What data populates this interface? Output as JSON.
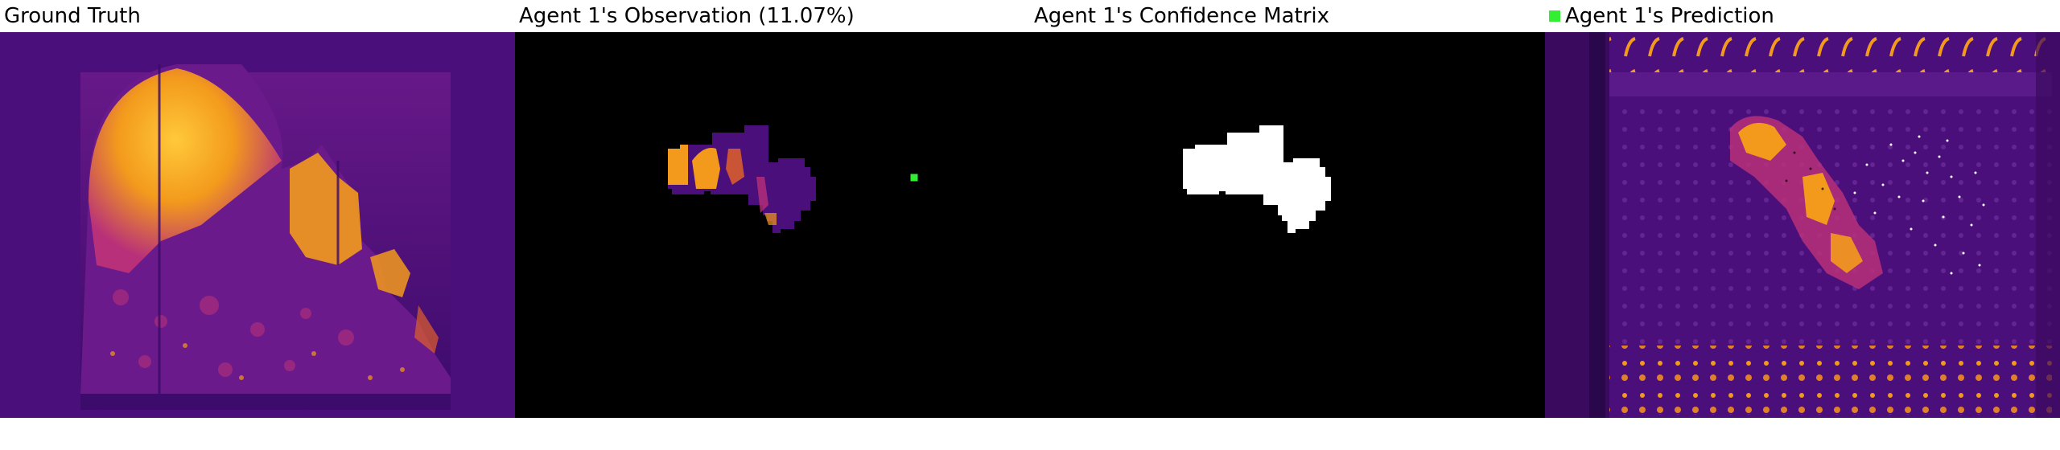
{
  "figure": {
    "panels": [
      {
        "id": "ground-truth",
        "title": "Ground Truth"
      },
      {
        "id": "observation",
        "title": "Agent 1's Observation (11.07%)"
      },
      {
        "id": "confidence",
        "title": "Agent 1's Confidence Matrix"
      },
      {
        "id": "prediction",
        "title": "Agent 1's Prediction",
        "legend_marker_color": "#33ee33"
      }
    ],
    "colors": {
      "background_purple": "#4a0f7a",
      "hot_orange": "#f39a1c",
      "hot_yellow": "#ffc93a",
      "mid_magenta": "#b8307a",
      "mask_black": "#000000",
      "mask_white": "#ffffff",
      "agent_marker": "#33ee33"
    }
  }
}
